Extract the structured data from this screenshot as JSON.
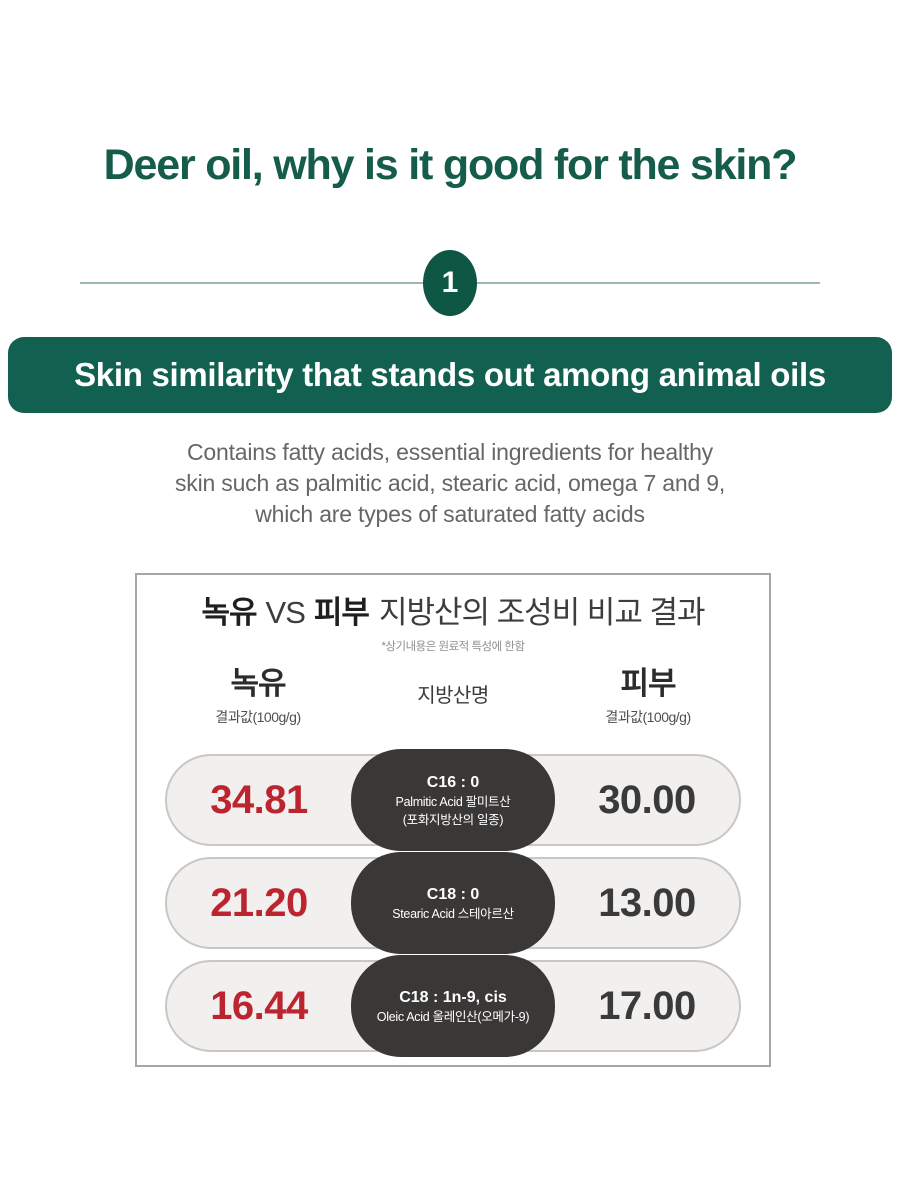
{
  "page": {
    "heading": "Deer oil, why is it good for the skin?",
    "section_number": "1",
    "banner": "Skin similarity that stands out among animal oils",
    "description_lines": [
      "Contains fatty acids, essential ingredients for healthy",
      "skin such as palmitic acid, stearic acid, omega 7 and 9,",
      "which are types of saturated fatty acids"
    ]
  },
  "colors": {
    "heading_green": "#155c4b",
    "banner_green": "#12604f",
    "badge_green": "#0e5745",
    "divider_line": "#9fb8af",
    "value_red": "#bc2430",
    "value_dark": "#3a3a3a",
    "pill_dark": "#3a3837",
    "row_bg": "#f1f0ee",
    "card_border": "#a7a7a7"
  },
  "table": {
    "title_bold1": "녹유",
    "title_vs": "VS",
    "title_bold2": "피부",
    "title_rest": "지방산의 조성비 비교 결과",
    "note": "*상기내용은 원료적 특성에 한함",
    "columns": {
      "left_title": "녹유",
      "left_sub": "결과값(100g/g)",
      "center_title": "지방산명",
      "right_title": "피부",
      "right_sub": "결과값(100g/g)"
    },
    "rows": [
      {
        "left": "34.81",
        "center_lines": [
          "C16 : 0",
          "Palmitic Acid 팔미트산",
          "(포화지방산의 일종)"
        ],
        "right": "30.00"
      },
      {
        "left": "21.20",
        "center_lines": [
          "C18 : 0",
          "Stearic Acid 스테아르산"
        ],
        "right": "13.00"
      },
      {
        "left": "16.44",
        "center_lines": [
          "C18 : 1n-9, cis",
          "Oleic Acid 올레인산(오메가-9)"
        ],
        "right": "17.00"
      }
    ]
  },
  "chart_data": {
    "type": "table",
    "title": "녹유 VS 피부 지방산의 조성비 비교 결과",
    "note": "*상기내용은 원료적 특성에 한함",
    "columns": [
      "녹유 결과값(100g/g)",
      "지방산명",
      "피부 결과값(100g/g)"
    ],
    "rows": [
      {
        "fatty_acid": "C16 : 0 Palmitic Acid 팔미트산 (포화지방산의 일종)",
        "deer_oil": 34.81,
        "skin": 30.0
      },
      {
        "fatty_acid": "C18 : 0 Stearic Acid 스테아르산",
        "deer_oil": 21.2,
        "skin": 13.0
      },
      {
        "fatty_acid": "C18 : 1n-9, cis Oleic Acid 올레인산(오메가-9)",
        "deer_oil": 16.44,
        "skin": 17.0
      }
    ]
  }
}
